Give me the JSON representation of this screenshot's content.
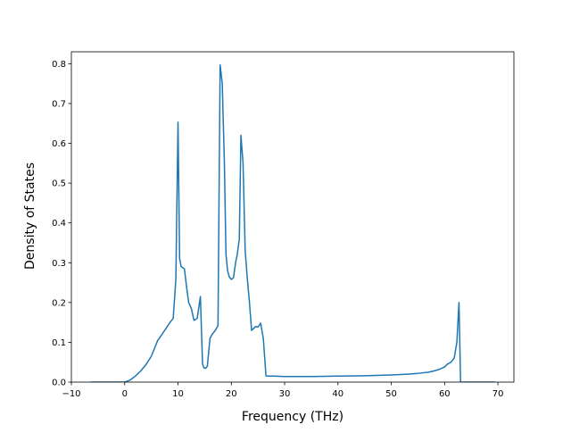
{
  "chart_data": {
    "type": "line",
    "xlabel": "Frequency (THz)",
    "ylabel": "Density of States",
    "xlim": [
      -10,
      73
    ],
    "ylim": [
      0,
      0.83
    ],
    "x_ticks": [
      -10,
      0,
      10,
      20,
      30,
      40,
      50,
      60,
      70
    ],
    "y_ticks": [
      0.0,
      0.1,
      0.2,
      0.3,
      0.4,
      0.5,
      0.6,
      0.7,
      0.8
    ],
    "x_tick_labels": [
      "−10",
      "0",
      "10",
      "20",
      "30",
      "40",
      "50",
      "60",
      "70"
    ],
    "y_tick_labels": [
      "0.0",
      "0.1",
      "0.2",
      "0.3",
      "0.4",
      "0.5",
      "0.6",
      "0.7",
      "0.8"
    ],
    "grid": false,
    "line_color": "#1f77b4",
    "series": [
      {
        "x": [
          -6.4,
          -4,
          -2,
          0,
          1,
          2,
          3,
          4,
          5,
          5.6,
          6.2,
          7,
          7.5,
          8,
          8.5,
          9.1,
          9.6,
          10,
          10.3,
          10.6,
          11.2,
          11.6,
          12,
          12.5,
          13,
          13.6,
          14.2,
          14.6,
          14.9,
          15.2,
          15.5,
          16,
          16.4,
          17,
          17.5,
          17.9,
          18.3,
          18.7,
          19.0,
          19.3,
          19.6,
          20.0,
          20.4,
          20.8,
          21.1,
          21.5,
          21.8,
          22.2,
          22.6,
          23.0,
          23.4,
          23.8,
          24.2,
          24.6,
          25.0,
          25.5,
          26.0,
          26.5,
          26.8,
          27.3,
          28,
          30,
          35,
          40,
          45,
          50,
          53,
          55,
          57,
          58,
          59,
          60,
          60.5,
          61.2,
          61.8,
          62.3,
          62.7,
          63.0,
          63.4,
          65,
          67,
          69.5
        ],
        "y": [
          0.0,
          0.0,
          0.0,
          0.0,
          0.005,
          0.015,
          0.028,
          0.044,
          0.065,
          0.085,
          0.105,
          0.12,
          0.13,
          0.14,
          0.15,
          0.16,
          0.26,
          0.653,
          0.31,
          0.29,
          0.285,
          0.24,
          0.2,
          0.185,
          0.155,
          0.16,
          0.215,
          0.045,
          0.035,
          0.035,
          0.04,
          0.11,
          0.12,
          0.13,
          0.142,
          0.797,
          0.75,
          0.55,
          0.32,
          0.28,
          0.265,
          0.258,
          0.262,
          0.3,
          0.32,
          0.36,
          0.62,
          0.55,
          0.33,
          0.26,
          0.2,
          0.13,
          0.135,
          0.14,
          0.138,
          0.148,
          0.11,
          0.016,
          0.015,
          0.015,
          0.015,
          0.014,
          0.014,
          0.015,
          0.016,
          0.018,
          0.02,
          0.022,
          0.025,
          0.028,
          0.032,
          0.038,
          0.045,
          0.05,
          0.06,
          0.1,
          0.2,
          0.0,
          0.0,
          0.0,
          0.0,
          0.0
        ]
      }
    ]
  }
}
